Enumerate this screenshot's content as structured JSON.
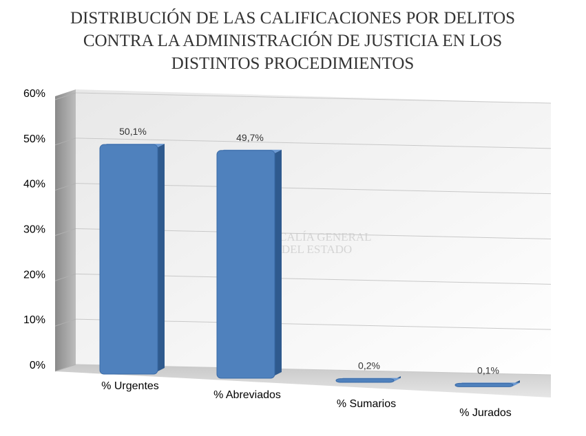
{
  "chart_data": {
    "type": "bar",
    "title": "DISTRIBUCIÓN DE LAS CALIFICACIONES POR DELITOS CONTRA LA ADMINISTRACIÓN DE JUSTICIA EN LOS DISTINTOS PROCEDIMIENTOS",
    "watermark": [
      "FISCALÍA GENERAL",
      "DEL ESTADO"
    ],
    "categories": [
      "% Urgentes",
      "% Abreviados",
      "% Sumarios",
      "% Jurados"
    ],
    "values": [
      50.1,
      49.7,
      0.2,
      0.1
    ],
    "value_labels": [
      "50,1%",
      "49,7%",
      "0,2%",
      "0,1%"
    ],
    "color": "#4f81bd",
    "ylim": [
      0,
      60
    ],
    "yticks": [
      {
        "value": 0,
        "label": "0%"
      },
      {
        "value": 10,
        "label": "10%"
      },
      {
        "value": 20,
        "label": "20%"
      },
      {
        "value": 30,
        "label": "30%"
      },
      {
        "value": 40,
        "label": "40%"
      },
      {
        "value": 50,
        "label": "50%"
      },
      {
        "value": 60,
        "label": "60%"
      }
    ],
    "grid": true
  }
}
